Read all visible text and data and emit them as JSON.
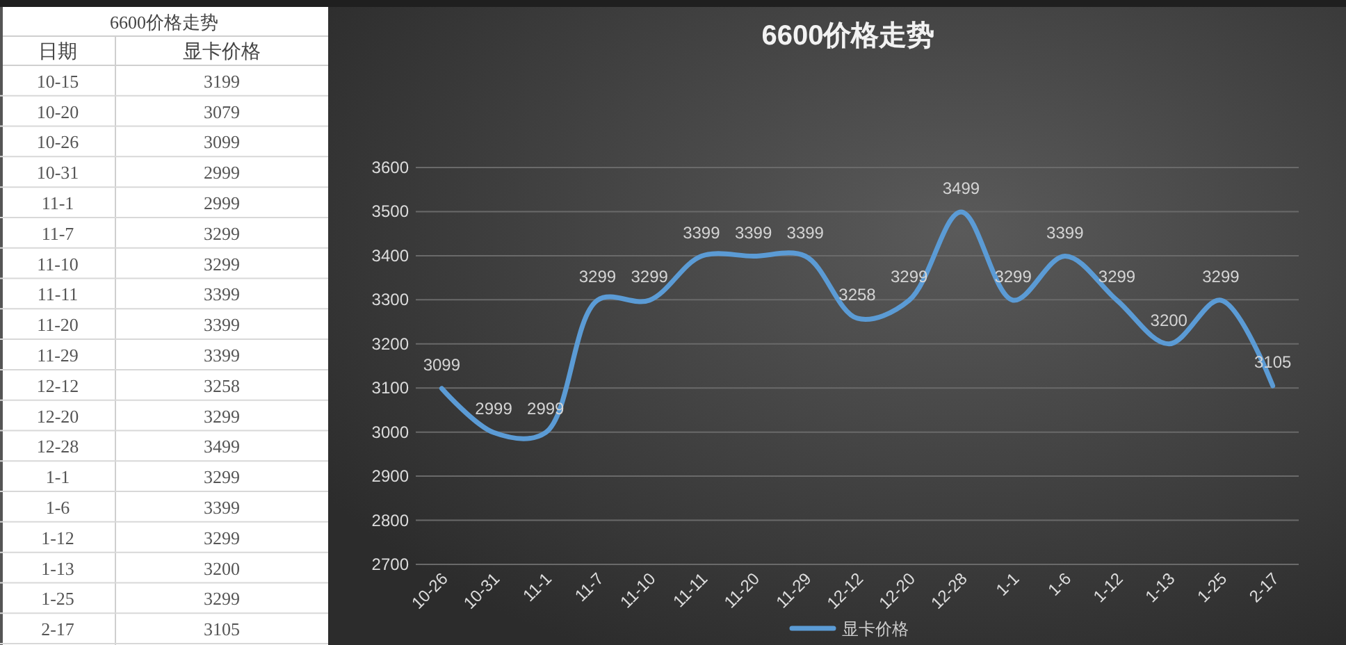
{
  "chart_data": [
    {
      "type": "other",
      "title": "6600价格走势",
      "xlabel": "日期",
      "categories": [
        "10-15",
        "10-20",
        "10-26",
        "10-31",
        "11-1",
        "11-7",
        "11-10",
        "11-11",
        "11-20",
        "11-29",
        "12-12",
        "12-20",
        "12-28",
        "1-1",
        "1-6",
        "1-12",
        "1-13",
        "1-25",
        "2-17"
      ],
      "series": [
        {
          "name": "显卡价格",
          "values": [
            3199,
            3079,
            3099,
            2999,
            2999,
            3299,
            3299,
            3399,
            3399,
            3399,
            3258,
            3299,
            3499,
            3299,
            3399,
            3299,
            3200,
            3299,
            3105
          ]
        }
      ],
      "data_labels": true
    },
    {
      "type": "line",
      "title": "6600价格走势",
      "categories": [
        "10-26",
        "10-31",
        "11-1",
        "11-7",
        "11-10",
        "11-11",
        "11-20",
        "11-29",
        "12-12",
        "12-20",
        "12-28",
        "1-1",
        "1-6",
        "1-12",
        "1-13",
        "1-25",
        "2-17"
      ],
      "series": [
        {
          "name": "显卡价格",
          "color": "#5b9bd5",
          "values": [
            3099,
            2999,
            2999,
            3299,
            3299,
            3399,
            3399,
            3399,
            3258,
            3299,
            3499,
            3299,
            3399,
            3299,
            3200,
            3299,
            3105
          ]
        }
      ],
      "ylim": [
        2700,
        3600
      ],
      "yticks": [
        2700,
        2800,
        2900,
        3000,
        3100,
        3200,
        3300,
        3400,
        3500,
        3600
      ],
      "grid": "y",
      "legend": "bottom",
      "data_labels": true
    }
  ]
}
